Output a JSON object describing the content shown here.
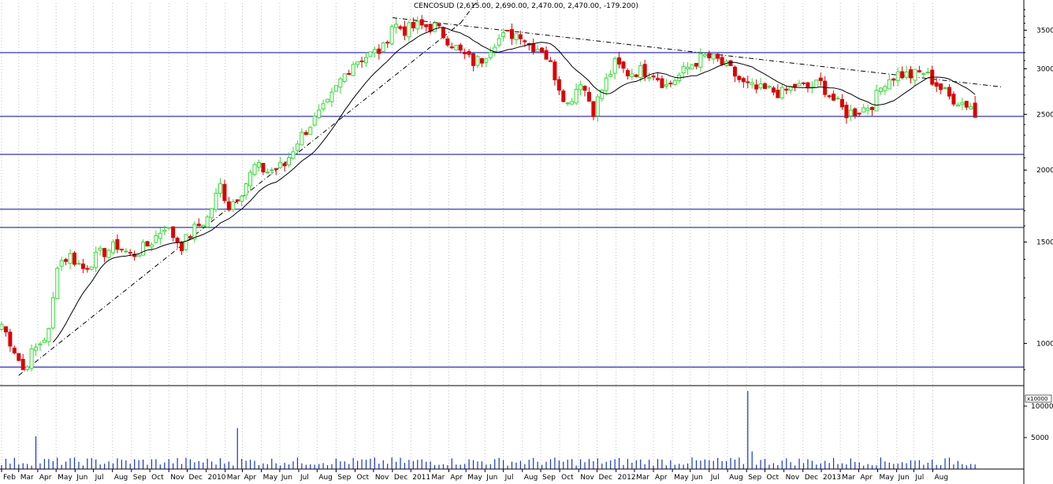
{
  "chart_data": {
    "type": "candlestick",
    "title": "CENCOSUD (2,615.00, 2,690.00, 2,470.00, 2,470.00, -179.200)",
    "price_axis": {
      "scale": "log",
      "ylim": [
        850,
        3900
      ],
      "ticks": [
        "3500",
        "3000",
        "2500",
        "2000",
        "1500",
        "1000"
      ],
      "tick_values": [
        3500,
        3000,
        2500,
        2000,
        1500,
        1000
      ]
    },
    "volume_axis": {
      "ylim": [
        0,
        13000
      ],
      "ticks": [
        "10000",
        "5000"
      ],
      "tick_values": [
        10000,
        5000
      ],
      "multiplier_label": "x10000"
    },
    "x_axis": {
      "labels": [
        "Feb",
        "Mar",
        "Apr",
        "May",
        "Jun",
        "Jul",
        "Aug",
        "Sep",
        "Oct",
        "Nov",
        "Dec",
        "2010",
        "Mar",
        "Apr",
        "May",
        "Jun",
        "Jul",
        "Aug",
        "Sep",
        "Oct",
        "Nov",
        "Dec",
        "2011",
        "Mar",
        "Apr",
        "May",
        "Jun",
        "Jul",
        "Aug",
        "Sep",
        "Oct",
        "Nov",
        "Dec",
        "2012",
        "Mar",
        "Apr",
        "May",
        "Jun",
        "Jul",
        "Aug",
        "Sep",
        "Oct",
        "Nov",
        "Dec",
        "2013",
        "Mar",
        "Apr",
        "May",
        "Jun",
        "Jul",
        "Aug"
      ],
      "range": [
        "2009-02-01",
        "2013-08-25"
      ]
    },
    "horizontal_lines": [
      3200,
      2480,
      2130,
      1710,
      1590,
      910
    ],
    "trendlines": [
      {
        "style": "dash-dot",
        "from": {
          "date": "2009-03-01",
          "value": 880
        },
        "to": {
          "date": "2011-02-20",
          "value": 3600
        }
      },
      {
        "style": "dash-dot",
        "from": {
          "date": "2011-02-20",
          "value": 3600
        },
        "to": {
          "date": "2011-04-01",
          "value": 4100
        }
      },
      {
        "style": "dash-dot",
        "from": {
          "date": "2010-11-01",
          "value": 3680
        },
        "to": {
          "date": "2013-07-22",
          "value": 2790
        }
      }
    ],
    "colors": {
      "up": "#33dd33",
      "down": "#dd0000",
      "ma": "#000000",
      "hline": "#0000cc",
      "volume": "#1133cc",
      "grid": "#c0c0c0"
    },
    "ma_period": 13,
    "keypoints": [
      [
        "2009-02-01",
        1080
      ],
      [
        "2009-02-22",
        975
      ],
      [
        "2009-03-08",
        900
      ],
      [
        "2009-03-22",
        960
      ],
      [
        "2009-04-20",
        1050
      ],
      [
        "2009-05-03",
        1380
      ],
      [
        "2009-05-24",
        1420
      ],
      [
        "2009-06-14",
        1350
      ],
      [
        "2009-07-12",
        1430
      ],
      [
        "2009-08-09",
        1480
      ],
      [
        "2009-09-01",
        1420
      ],
      [
        "2009-10-01",
        1490
      ],
      [
        "2009-10-25",
        1600
      ],
      [
        "2009-11-22",
        1480
      ],
      [
        "2009-12-13",
        1580
      ],
      [
        "2010-01-03",
        1650
      ],
      [
        "2010-01-24",
        1880
      ],
      [
        "2010-02-07",
        1730
      ],
      [
        "2010-03-01",
        1850
      ],
      [
        "2010-03-21",
        2030
      ],
      [
        "2010-04-11",
        1990
      ],
      [
        "2010-05-09",
        2040
      ],
      [
        "2010-05-30",
        2250
      ],
      [
        "2010-06-20",
        2400
      ],
      [
        "2010-07-18",
        2600
      ],
      [
        "2010-08-08",
        2860
      ],
      [
        "2010-08-29",
        3080
      ],
      [
        "2010-09-26",
        3180
      ],
      [
        "2010-10-17",
        3250
      ],
      [
        "2010-11-01",
        3600
      ],
      [
        "2010-11-21",
        3500
      ],
      [
        "2010-12-12",
        3560
      ],
      [
        "2011-01-09",
        3550
      ],
      [
        "2011-01-30",
        3380
      ],
      [
        "2011-02-20",
        3200
      ],
      [
        "2011-03-13",
        3080
      ],
      [
        "2011-03-27",
        3120
      ],
      [
        "2011-04-17",
        3350
      ],
      [
        "2011-05-08",
        3440
      ],
      [
        "2011-05-29",
        3460
      ],
      [
        "2011-06-12",
        3300
      ],
      [
        "2011-07-03",
        3250
      ],
      [
        "2011-07-17",
        3050
      ],
      [
        "2011-07-31",
        2800
      ],
      [
        "2011-08-14",
        2600
      ],
      [
        "2011-09-04",
        2870
      ],
      [
        "2011-09-25",
        2540
      ],
      [
        "2011-10-09",
        2760
      ],
      [
        "2011-10-30",
        3060
      ],
      [
        "2011-11-20",
        2950
      ],
      [
        "2011-12-11",
        2980
      ],
      [
        "2012-01-01",
        2950
      ],
      [
        "2012-01-22",
        2800
      ],
      [
        "2012-02-12",
        2920
      ],
      [
        "2012-03-04",
        3060
      ],
      [
        "2012-03-25",
        3150
      ],
      [
        "2012-04-15",
        3100
      ],
      [
        "2012-05-06",
        2980
      ],
      [
        "2012-05-27",
        2820
      ],
      [
        "2012-06-17",
        2760
      ],
      [
        "2012-07-08",
        2750
      ],
      [
        "2012-07-29",
        2720
      ],
      [
        "2012-08-19",
        2800
      ],
      [
        "2012-09-09",
        2780
      ],
      [
        "2012-09-30",
        2830
      ],
      [
        "2012-10-21",
        2650
      ],
      [
        "2012-11-11",
        2510
      ],
      [
        "2012-12-02",
        2540
      ],
      [
        "2012-12-23",
        2610
      ],
      [
        "2013-01-13",
        2860
      ],
      [
        "2013-02-03",
        2940
      ],
      [
        "2013-02-24",
        2920
      ],
      [
        "2013-03-17",
        2960
      ],
      [
        "2013-04-07",
        2820
      ],
      [
        "2013-04-28",
        2680
      ],
      [
        "2013-05-19",
        2620
      ],
      [
        "2013-06-02",
        2590
      ],
      [
        "2013-06-09",
        2470
      ]
    ],
    "last_candle": {
      "date": "2013-06-09",
      "open": 2615,
      "high": 2690,
      "low": 2470,
      "close": 2470
    },
    "volume_spikes": [
      {
        "date": "2009-03-29",
        "value": 5200
      },
      {
        "date": "2010-02-21",
        "value": 6500
      },
      {
        "date": "2012-06-03",
        "value": 12400
      },
      {
        "date": "2012-06-10",
        "value": 2800
      }
    ],
    "volume_base": 1200
  }
}
